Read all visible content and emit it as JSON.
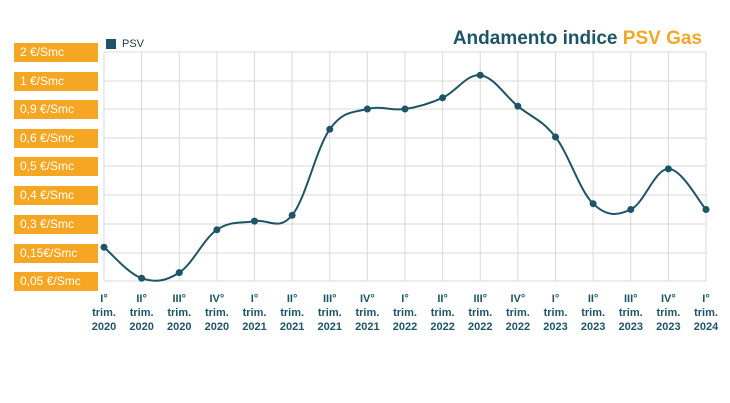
{
  "chart_data": {
    "type": "line",
    "title_prefix": "Andamento indice ",
    "title_accent": "PSV Gas",
    "legend": "PSV",
    "series": [
      {
        "name": "PSV",
        "values": [
          0.18,
          0.06,
          0.08,
          0.27,
          0.31,
          0.33,
          0.69,
          0.9,
          0.9,
          0.94,
          1.2,
          0.91,
          0.61,
          0.37,
          0.35,
          0.49,
          0.35
        ]
      }
    ],
    "categories": [
      [
        "I°",
        "trim.",
        "2020"
      ],
      [
        "II°",
        "trim.",
        "2020"
      ],
      [
        "III°",
        "trim.",
        "2020"
      ],
      [
        "IV°",
        "trim.",
        "2020"
      ],
      [
        "I°",
        "trim.",
        "2021"
      ],
      [
        "II°",
        "trim.",
        "2021"
      ],
      [
        "III°",
        "trim.",
        "2021"
      ],
      [
        "IV°",
        "trim.",
        "2021"
      ],
      [
        "I°",
        "trim.",
        "2022"
      ],
      [
        "II°",
        "trim.",
        "2022"
      ],
      [
        "III°",
        "trim.",
        "2022"
      ],
      [
        "IV°",
        "trim.",
        "2022"
      ],
      [
        "I°",
        "trim.",
        "2023"
      ],
      [
        "II°",
        "trim.",
        "2023"
      ],
      [
        "III°",
        "trim.",
        "2023"
      ],
      [
        "IV°",
        "trim.",
        "2023"
      ],
      [
        "I°",
        "trim.",
        "2024"
      ]
    ],
    "y_tick_labels": [
      "2 €/Smc",
      "1 €/Smc",
      "0,9 €/Smc",
      "0,6 €/Smc",
      "0,5 €/Smc",
      "0,4 €/Smc",
      "0,3 €/Smc",
      "0,15€/Smc",
      "0,05 €/Smc"
    ],
    "grid": true,
    "colors": {
      "line": "#1d5566",
      "label_bg": "#f5a623",
      "grid": "#d9d9d9",
      "axis_text": "#1d5566"
    }
  }
}
